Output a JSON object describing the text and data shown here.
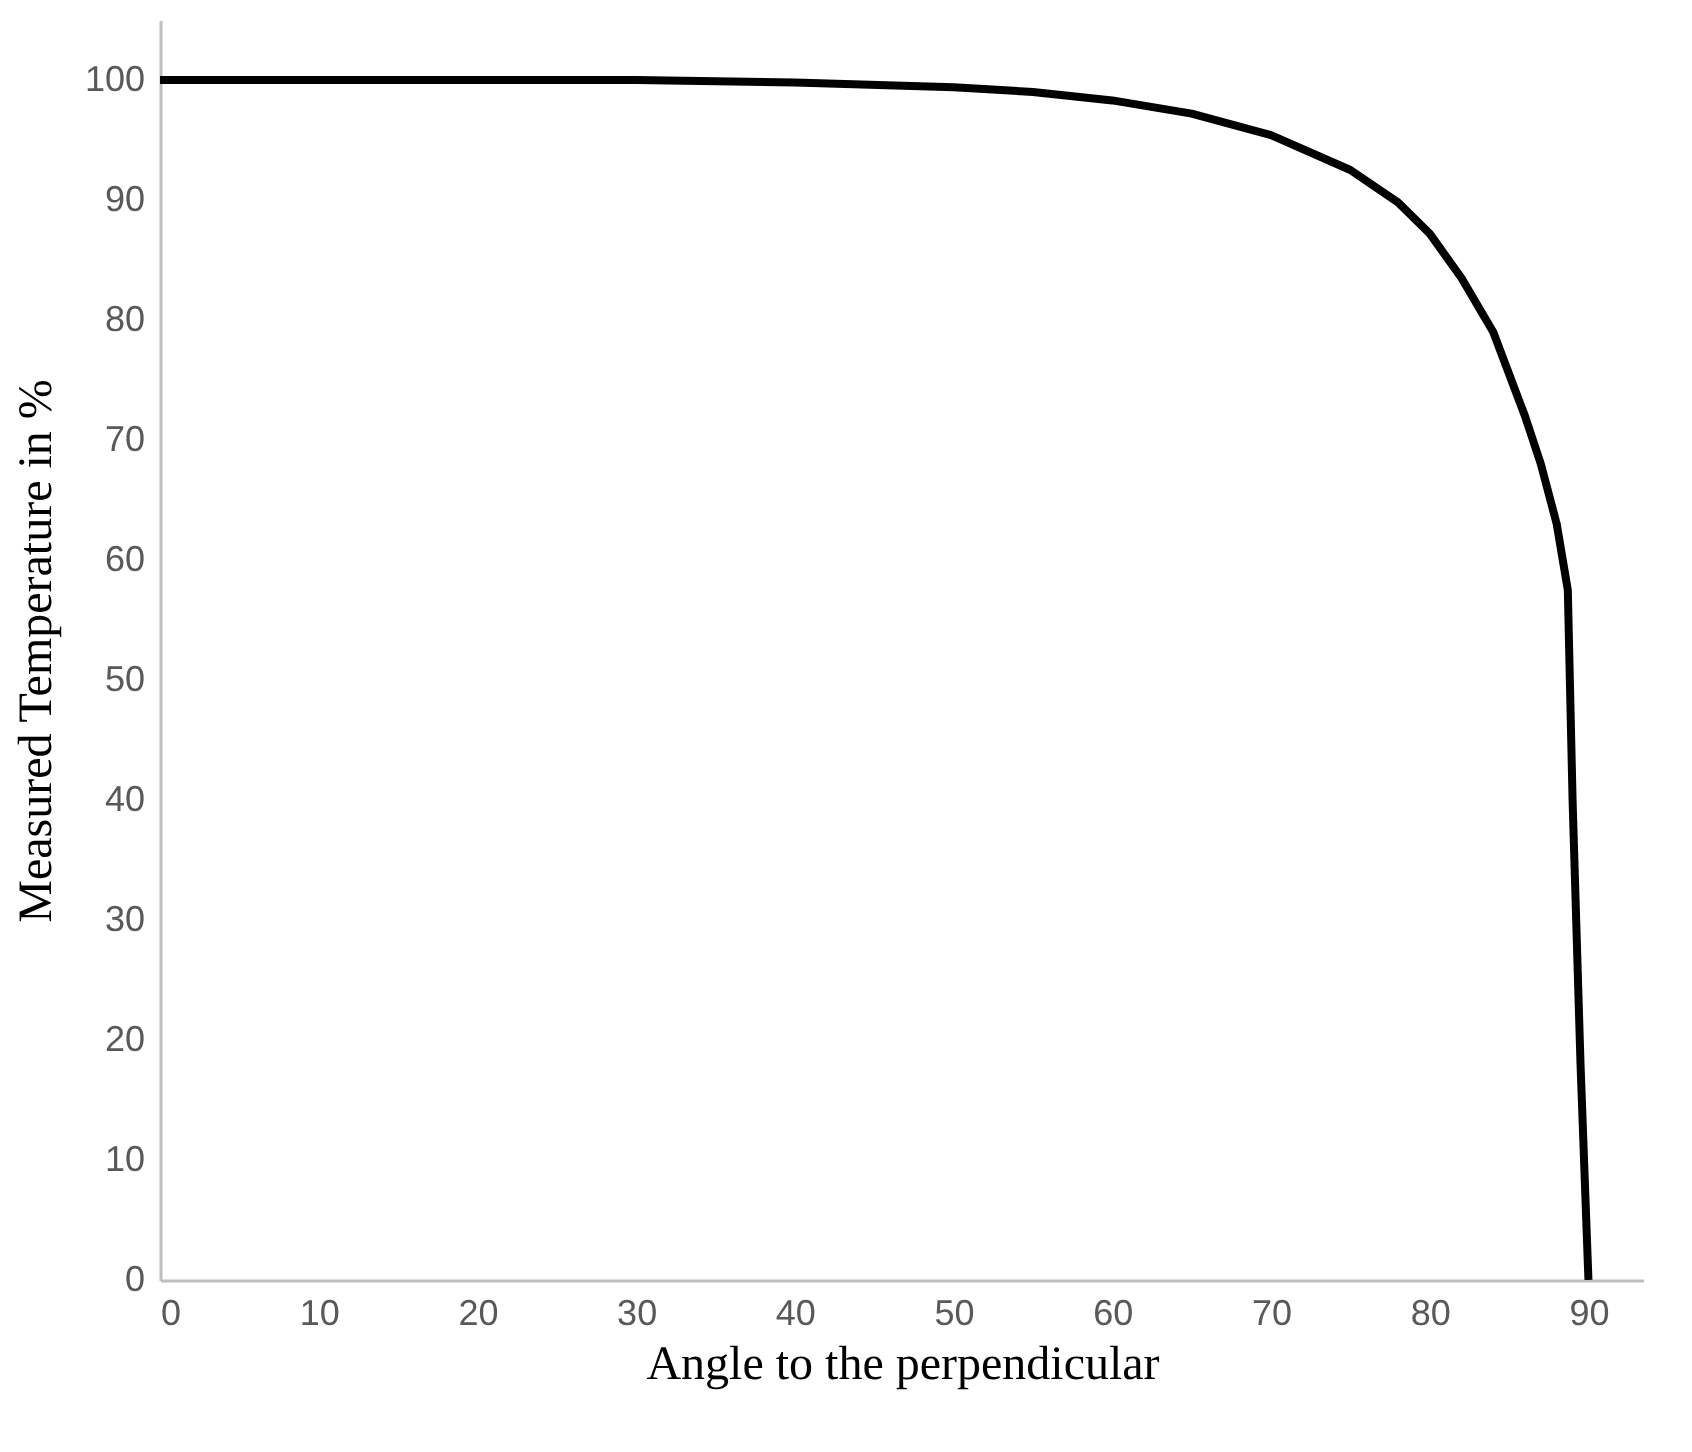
{
  "chart_data": {
    "type": "line",
    "xlabel": "Angle to the perpendicular",
    "ylabel": "Measured Temperature in %",
    "x": [
      0,
      10,
      20,
      30,
      40,
      50,
      55,
      60,
      65,
      70,
      75,
      78,
      80,
      82,
      84,
      86,
      87,
      88,
      88.7,
      89,
      89.5,
      90
    ],
    "series": [
      {
        "color": "#000000",
        "values": [
          100,
          100,
          100,
          100,
          99.8,
          99.4,
          99,
          98.3,
          97.2,
          95.4,
          92.5,
          89.8,
          87.2,
          83.5,
          79,
          72,
          68,
          63,
          57.5,
          40,
          18,
          0
        ]
      }
    ],
    "xlim": [
      0,
      93.5
    ],
    "ylim": [
      0,
      105
    ],
    "xticks": [
      0,
      10,
      20,
      30,
      40,
      50,
      60,
      70,
      80,
      90
    ],
    "yticks": [
      0,
      10,
      20,
      30,
      40,
      50,
      60,
      70,
      80,
      90,
      100
    ],
    "grid": false,
    "marker": "none",
    "line_style": "solid"
  }
}
